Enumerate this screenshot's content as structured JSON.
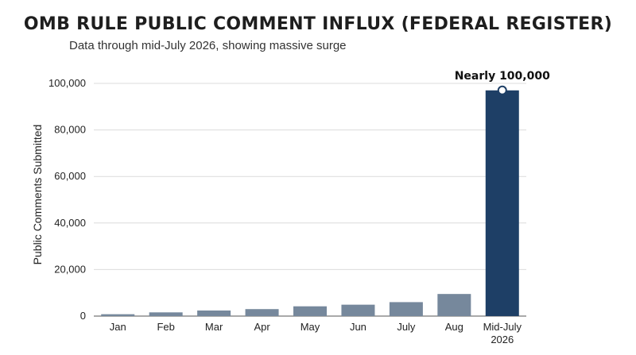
{
  "chart_data": {
    "type": "bar",
    "title": "OMB RULE PUBLIC COMMENT INFLUX (FEDERAL REGISTER)",
    "subtitle": "Data through mid-July 2026, showing massive surge",
    "xlabel": "",
    "ylabel": "Public Comments Submitted",
    "categories": [
      "Jan",
      "Feb",
      "Mar",
      "Apr",
      "May",
      "Jun",
      "July",
      "Aug",
      "Mid-July\n2026"
    ],
    "values": [
      800,
      1600,
      2400,
      3000,
      4200,
      4900,
      6000,
      9500,
      97000
    ],
    "ylim": [
      0,
      100000
    ],
    "yticks": [
      0,
      20000,
      40000,
      60000,
      80000,
      100000
    ],
    "ytick_labels": [
      "0",
      "20,000",
      "40,000",
      "60,000",
      "80,000",
      "100,000"
    ],
    "grid": true,
    "colors": {
      "bars": "#76889c",
      "highlight": "#1e3f66"
    },
    "annotation": {
      "category_index": 8,
      "text": "Nearly 100,000",
      "marker": true
    }
  }
}
